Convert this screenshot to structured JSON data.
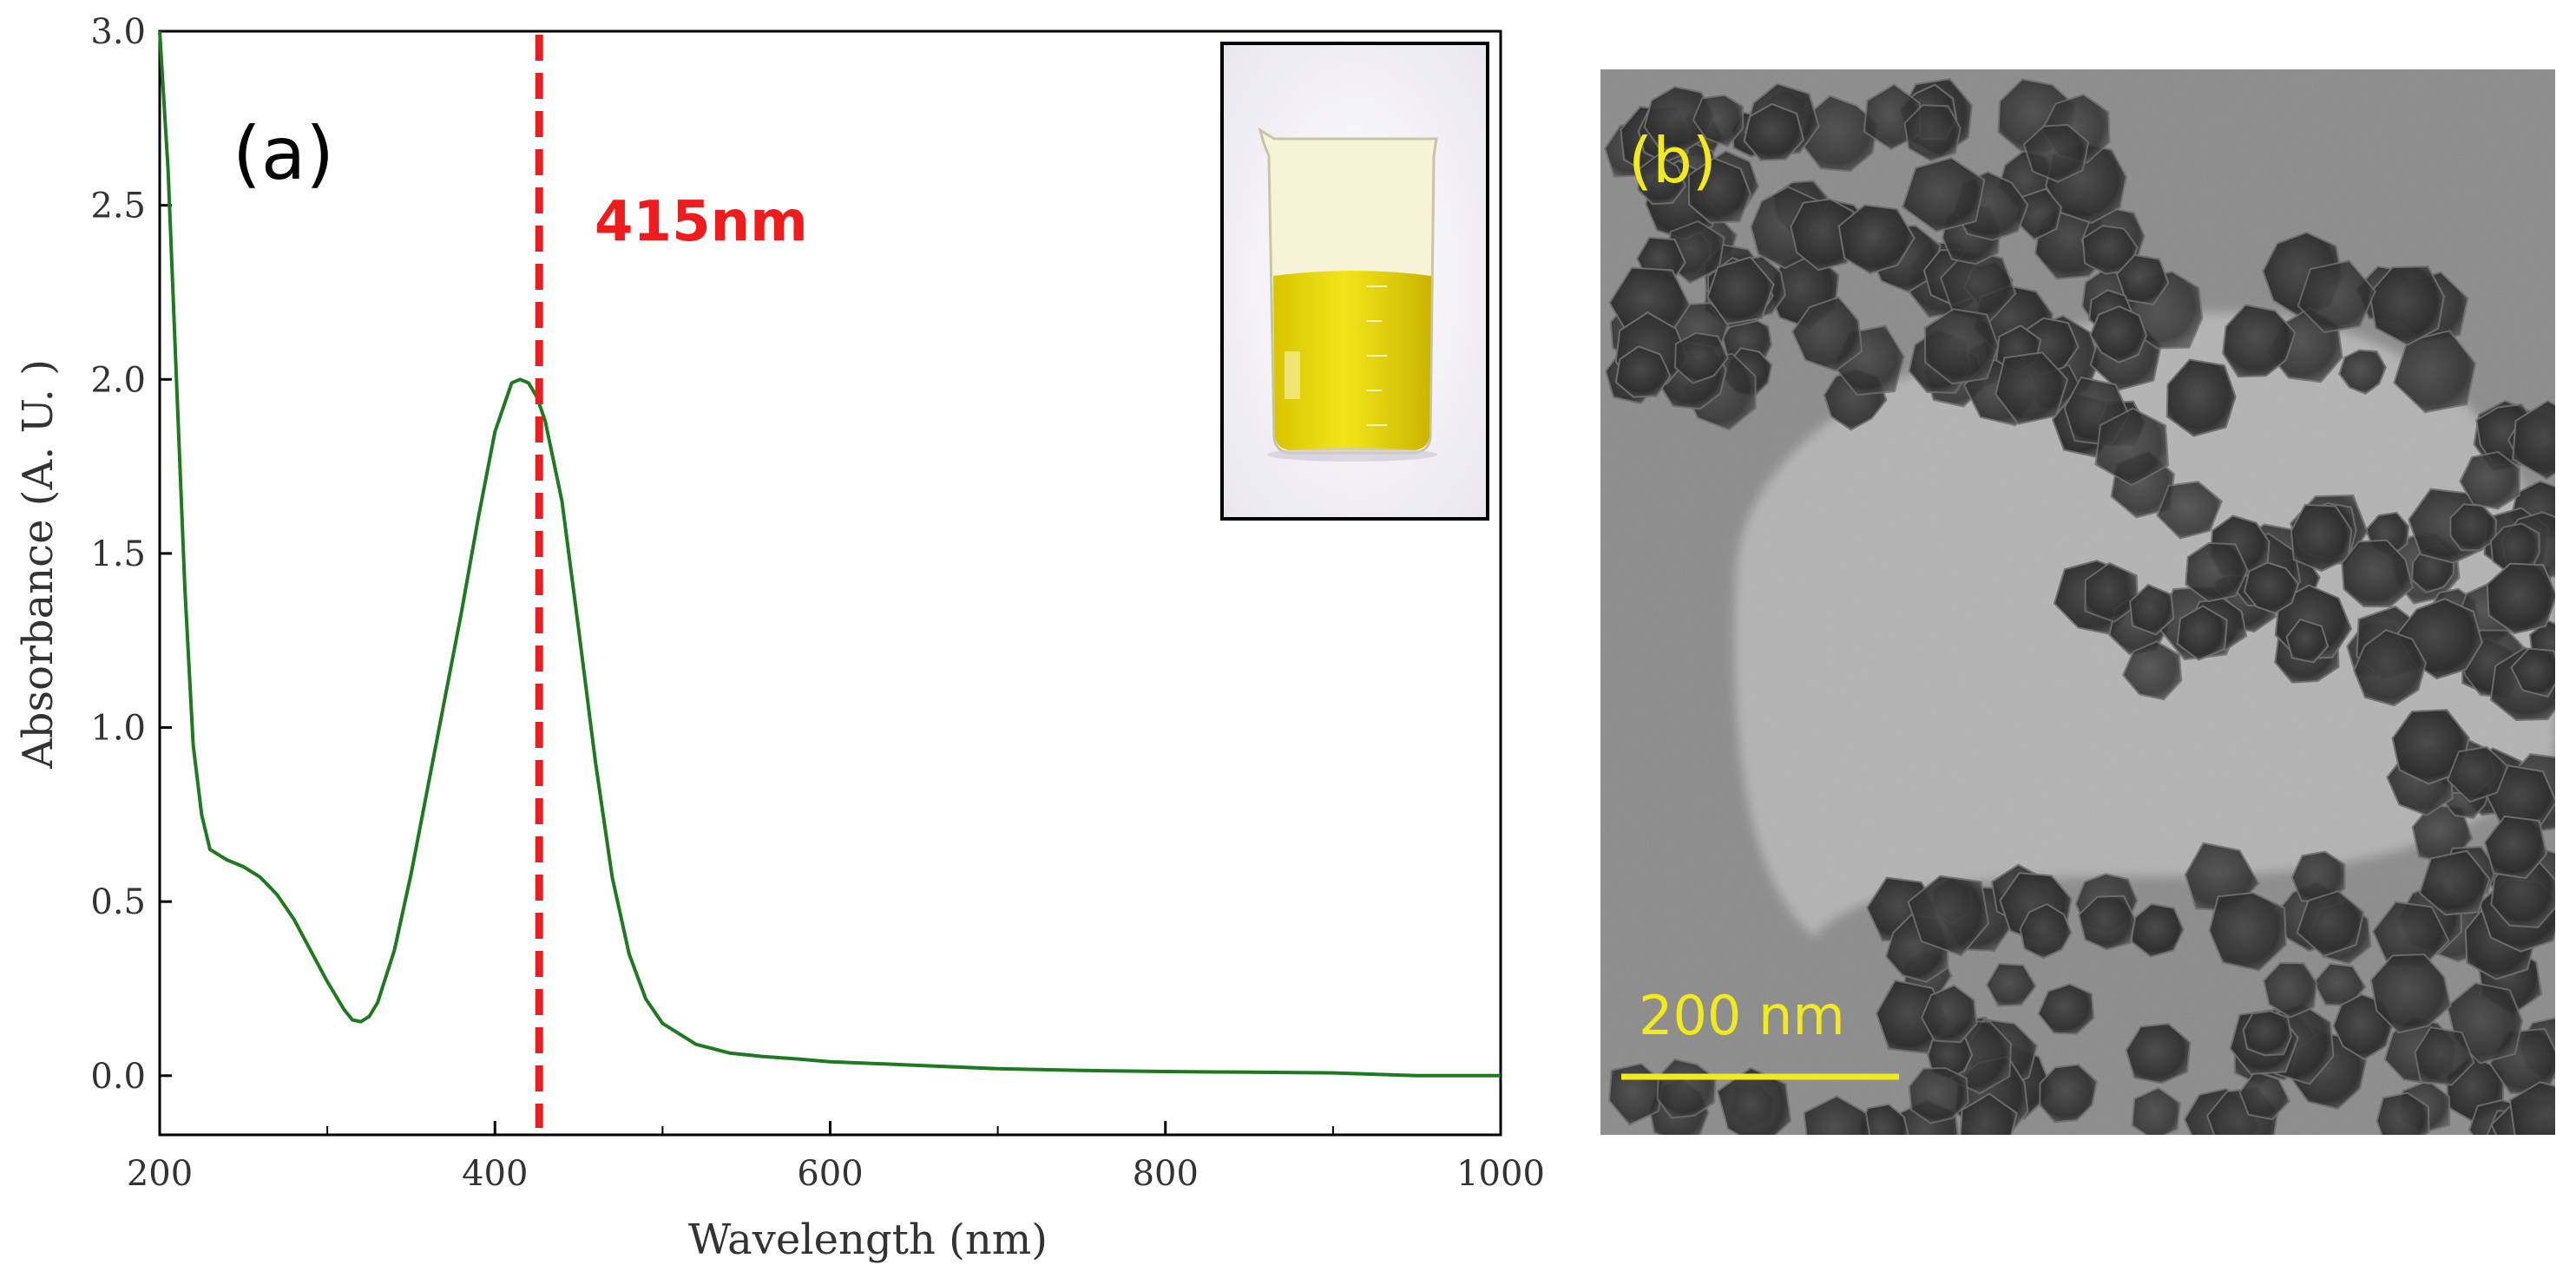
{
  "chart_data": {
    "type": "line",
    "panel_label": "(a)",
    "xlabel": "Wavelength (nm)",
    "ylabel": "Absorbance (A. U. )",
    "xlim": [
      200,
      1000
    ],
    "ylim": [
      -0.17,
      3.0
    ],
    "x_ticks": [
      200,
      400,
      600,
      800,
      1000
    ],
    "x_tick_labels": [
      "200",
      "400",
      "600",
      "800",
      "1000"
    ],
    "x_minor_ticks": [
      300,
      500,
      700,
      900
    ],
    "y_ticks": [
      0.0,
      0.5,
      1.0,
      1.5,
      2.0,
      2.5,
      3.0
    ],
    "y_tick_labels": [
      "0.0",
      "0.5",
      "1.0",
      "1.5",
      "2.0",
      "2.5",
      "3.0"
    ],
    "series": [
      {
        "name": "absorbance",
        "color": "#1f7a1f",
        "x": [
          200,
          205,
          210,
          215,
          220,
          225,
          230,
          240,
          250,
          260,
          270,
          280,
          290,
          300,
          310,
          315,
          320,
          325,
          330,
          340,
          350,
          360,
          370,
          380,
          390,
          400,
          410,
          415,
          420,
          425,
          430,
          440,
          450,
          460,
          470,
          480,
          490,
          500,
          520,
          540,
          560,
          580,
          600,
          650,
          700,
          750,
          800,
          850,
          900,
          950,
          1000
        ],
        "y": [
          3.0,
          2.6,
          2.0,
          1.4,
          0.95,
          0.75,
          0.65,
          0.62,
          0.6,
          0.57,
          0.52,
          0.45,
          0.36,
          0.27,
          0.19,
          0.16,
          0.155,
          0.17,
          0.21,
          0.36,
          0.58,
          0.83,
          1.08,
          1.33,
          1.6,
          1.85,
          1.99,
          2.0,
          1.99,
          1.95,
          1.88,
          1.65,
          1.28,
          0.9,
          0.57,
          0.35,
          0.22,
          0.15,
          0.09,
          0.065,
          0.055,
          0.048,
          0.04,
          0.03,
          0.02,
          0.015,
          0.012,
          0.01,
          0.008,
          0.0,
          0.0
        ]
      }
    ],
    "peak": {
      "x": 415,
      "label": "415nm",
      "color": "#ee1c1c"
    }
  },
  "tem_panel": {
    "panel_label": "(b)",
    "scale_bar_label": "200 nm",
    "label_color": "#f2ea1c"
  }
}
